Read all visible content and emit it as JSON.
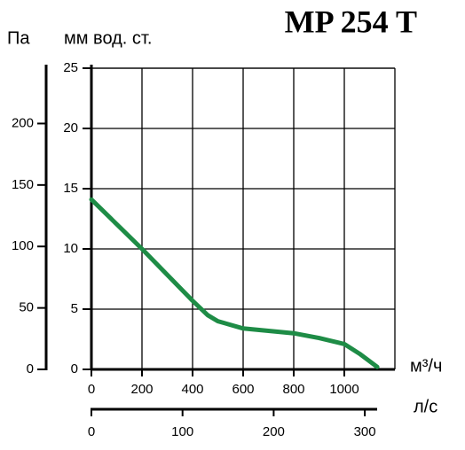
{
  "chart_data": {
    "type": "line",
    "title": "MP 254 T",
    "y_label": "мм вод. ст.",
    "x_label": "м³/ч",
    "x": [
      0,
      200,
      400,
      460,
      500,
      600,
      800,
      900,
      1000,
      1060,
      1130
    ],
    "values": [
      14.1,
      10,
      5.7,
      4.5,
      4.0,
      3.4,
      3.0,
      2.6,
      2.1,
      1.3,
      0.2
    ],
    "color": "#1e8c46",
    "xlim": [
      0,
      1200
    ],
    "xticks": [
      0,
      200,
      400,
      600,
      800,
      1000
    ],
    "ylim": [
      0,
      25
    ],
    "yticks": [
      0,
      5,
      10,
      15,
      20,
      25
    ],
    "grid": true,
    "pa_axis": {
      "label": "Па",
      "lim": [
        0,
        245
      ],
      "ticks": [
        0,
        50,
        100,
        150,
        200
      ]
    },
    "ls_axis": {
      "label": "л/с",
      "lim": [
        0,
        333
      ],
      "ticks": [
        0,
        100,
        200,
        300
      ]
    }
  }
}
